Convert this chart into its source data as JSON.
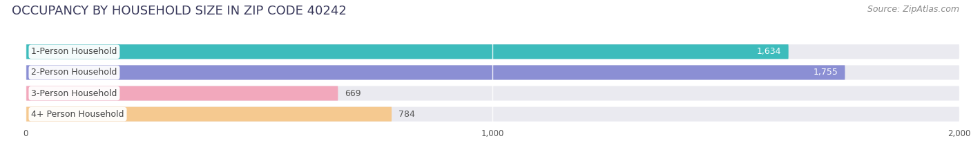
{
  "title": "OCCUPANCY BY HOUSEHOLD SIZE IN ZIP CODE 40242",
  "source": "Source: ZipAtlas.com",
  "categories": [
    "1-Person Household",
    "2-Person Household",
    "3-Person Household",
    "4+ Person Household"
  ],
  "values": [
    1634,
    1755,
    669,
    784
  ],
  "bar_colors": [
    "#3dbcbc",
    "#8b8fd4",
    "#f2a8bc",
    "#f5c990"
  ],
  "bg_color": "#ffffff",
  "bar_bg_color": "#eaeaf0",
  "xlim": [
    -30,
    2000
  ],
  "data_xlim": [
    0,
    2000
  ],
  "xticks": [
    0,
    1000,
    2000
  ],
  "title_fontsize": 13,
  "source_fontsize": 9,
  "bar_label_fontsize": 9,
  "category_fontsize": 9,
  "title_color": "#3a3a5c",
  "source_color": "#888888",
  "label_dark_color": "#555555",
  "label_white_color": "#ffffff",
  "bar_height": 0.7,
  "rounding": 0.35
}
